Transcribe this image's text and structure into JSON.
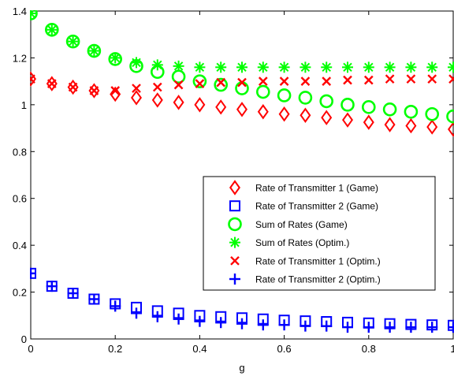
{
  "chart_data": {
    "type": "scatter",
    "title": "",
    "xlabel": "g",
    "ylabel": "",
    "xlim": [
      0,
      1
    ],
    "ylim": [
      0,
      1.4
    ],
    "x_ticks": [
      0,
      0.2,
      0.4,
      0.6,
      0.8,
      1
    ],
    "x_tick_labels": [
      "0",
      "0.2",
      "0.4",
      "0.6",
      "0.8",
      "1"
    ],
    "y_ticks": [
      0,
      0.2,
      0.4,
      0.6,
      0.8,
      1,
      1.2,
      1.4
    ],
    "y_tick_labels": [
      "0",
      "0.2",
      "0.4",
      "0.6",
      "0.8",
      "1",
      "1.2",
      "1.4"
    ],
    "grid": false,
    "legend_position": "center-right",
    "x": [
      0,
      0.05,
      0.1,
      0.15,
      0.2,
      0.25,
      0.3,
      0.35,
      0.4,
      0.45,
      0.5,
      0.55,
      0.6,
      0.65,
      0.7,
      0.75,
      0.8,
      0.85,
      0.9,
      0.95,
      1
    ],
    "series": [
      {
        "name": "Rate of Transmitter 1 (Game)",
        "marker": "diamond",
        "color": "#ff0000",
        "values": [
          1.11,
          1.09,
          1.075,
          1.06,
          1.045,
          1.03,
          1.02,
          1.01,
          1.0,
          0.99,
          0.98,
          0.97,
          0.96,
          0.955,
          0.945,
          0.935,
          0.925,
          0.915,
          0.91,
          0.905,
          0.895
        ]
      },
      {
        "name": "Rate of Transmitter 2 (Game)",
        "marker": "square",
        "color": "#0000ff",
        "values": [
          0.28,
          0.225,
          0.195,
          0.17,
          0.15,
          0.135,
          0.12,
          0.11,
          0.1,
          0.095,
          0.09,
          0.085,
          0.08,
          0.077,
          0.074,
          0.071,
          0.068,
          0.065,
          0.062,
          0.06,
          0.058
        ]
      },
      {
        "name": "Sum of Rates (Game)",
        "marker": "circle",
        "color": "#00ff00",
        "values": [
          1.39,
          1.32,
          1.27,
          1.23,
          1.195,
          1.165,
          1.14,
          1.12,
          1.1,
          1.085,
          1.07,
          1.055,
          1.04,
          1.03,
          1.015,
          1.0,
          0.99,
          0.98,
          0.97,
          0.96,
          0.95
        ]
      },
      {
        "name": "Sum of Rates (Optim.)",
        "marker": "asterisk",
        "color": "#00ff00",
        "values": [
          1.39,
          1.32,
          1.27,
          1.23,
          1.2,
          1.18,
          1.17,
          1.165,
          1.16,
          1.16,
          1.16,
          1.16,
          1.16,
          1.16,
          1.16,
          1.16,
          1.16,
          1.16,
          1.16,
          1.16,
          1.16
        ]
      },
      {
        "name": "Rate of Transmitter 1 (Optim.)",
        "marker": "x",
        "color": "#ff0000",
        "values": [
          1.11,
          1.09,
          1.075,
          1.06,
          1.06,
          1.07,
          1.075,
          1.085,
          1.09,
          1.095,
          1.095,
          1.1,
          1.1,
          1.1,
          1.1,
          1.105,
          1.105,
          1.11,
          1.11,
          1.11,
          1.11
        ]
      },
      {
        "name": "Rate of Transmitter 2 (Optim.)",
        "marker": "plus",
        "color": "#0000ff",
        "values": [
          0.28,
          0.225,
          0.195,
          0.17,
          0.14,
          0.11,
          0.095,
          0.085,
          0.075,
          0.07,
          0.065,
          0.06,
          0.06,
          0.055,
          0.055,
          0.05,
          0.05,
          0.05,
          0.05,
          0.05,
          0.05
        ]
      }
    ]
  }
}
